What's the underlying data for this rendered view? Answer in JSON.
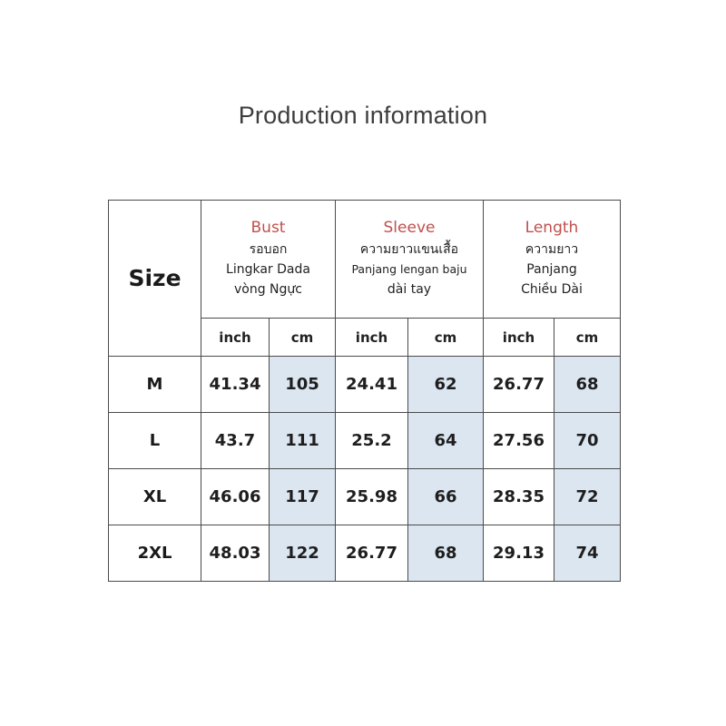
{
  "title": "Production information",
  "table": {
    "size_header": "Size",
    "groups": [
      {
        "title": "Bust",
        "lines": [
          "รอบอก",
          "Lingkar Dada",
          "vòng Ngực"
        ]
      },
      {
        "title": "Sleeve",
        "lines": [
          "ความยาวแขนเสื้อ",
          "Panjang lengan baju",
          "dài tay"
        ]
      },
      {
        "title": "Length",
        "lines": [
          "ความยาว",
          "Panjang",
          "Chiều Dài"
        ]
      }
    ],
    "units": [
      "inch",
      "cm",
      "inch",
      "cm",
      "inch",
      "cm"
    ],
    "rows": [
      {
        "size": "M",
        "values": [
          "41.34",
          "105",
          "24.41",
          "62",
          "26.77",
          "68"
        ]
      },
      {
        "size": "L",
        "values": [
          "43.7",
          "111",
          "25.2",
          "64",
          "27.56",
          "70"
        ]
      },
      {
        "size": "XL",
        "values": [
          "46.06",
          "117",
          "25.98",
          "66",
          "28.35",
          "72"
        ]
      },
      {
        "size": "2XL",
        "values": [
          "48.03",
          "122",
          "26.77",
          "68",
          "29.13",
          "74"
        ]
      }
    ]
  },
  "colors": {
    "group_title": "#c0504d",
    "cm_cell_background": "#dce6f1",
    "border": "#4a4a4a"
  }
}
